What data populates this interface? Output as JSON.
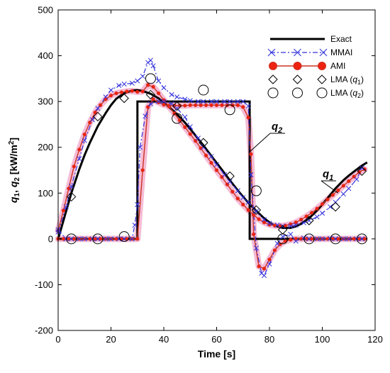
{
  "chart_data": {
    "type": "line",
    "xlabel": "Time [s]",
    "ylabel": "q1, q2 [kW/m2]",
    "xlim": [
      0,
      120
    ],
    "ylim": [
      -200,
      500
    ],
    "xticks": [
      0,
      20,
      40,
      60,
      80,
      100,
      120
    ],
    "yticks": [
      -200,
      -100,
      0,
      100,
      200,
      300,
      400,
      500
    ],
    "grid": false,
    "legend": "top-right",
    "colors": {
      "exact": "#000000",
      "mmai": "#3333dd",
      "ami": "#cc3322",
      "ami_fill": "#ee2211",
      "band": "#f2a6c8"
    },
    "series": [
      {
        "name": "Exact",
        "style": "solid-black",
        "groups": [
          {
            "x": [
              0,
              2,
              5,
              8,
              10,
              12,
              15,
              18,
              20,
              22,
              25,
              28,
              30,
              32,
              35,
              38,
              40,
              42,
              45,
              48,
              50,
              52,
              55,
              58,
              60,
              62,
              65,
              68,
              70,
              72,
              75,
              78,
              80,
              82,
              85,
              88,
              90,
              92,
              95,
              98,
              100,
              102,
              105,
              108,
              110,
              112,
              115,
              117
            ],
            "y": [
              0,
              40,
              100,
              152,
              183,
              210,
              246,
              275,
              292,
              306,
              318,
              324,
              325,
              323,
              317,
              307,
              298,
              288,
              272,
              254,
              240,
              226,
              204,
              181,
              166,
              151,
              128,
              106,
              92,
              79,
              61,
              45,
              36,
              29,
              24,
              24,
              27,
              33,
              45,
              62,
              75,
              89,
              110,
              128,
              138,
              147,
              160,
              167
            ]
          },
          {
            "x": [
              0,
              30,
              30,
              72.5,
              72.5,
              117
            ],
            "y": [
              0,
              0,
              300,
              300,
              0,
              0
            ]
          }
        ]
      },
      {
        "name": "MMAI",
        "style": "dashdot-blue-x",
        "groups": [
          {
            "x": [
              0,
              3,
              5,
              8,
              10,
              13,
              15,
              18,
              20,
              23,
              25,
              28,
              30,
              32,
              34,
              35,
              36,
              38,
              40,
              43,
              45,
              48,
              50,
              53,
              55,
              58,
              60,
              63,
              65,
              68,
              70,
              72,
              73,
              75,
              77,
              78,
              80,
              83,
              85,
              88,
              90,
              93,
              95,
              98,
              100,
              103,
              105,
              108,
              110,
              113,
              115
            ],
            "y": [
              15,
              70,
              115,
              175,
              215,
              260,
              285,
              310,
              325,
              335,
              338,
              340,
              345,
              355,
              385,
              390,
              378,
              345,
              330,
              315,
              310,
              305,
              302,
              300,
              300,
              300,
              300,
              300,
              300,
              300,
              300,
              290,
              140,
              -20,
              -75,
              -80,
              -55,
              -10,
              5,
              10,
              -5,
              2,
              0,
              0,
              0,
              1,
              0,
              0,
              0,
              0,
              0
            ]
          },
          {
            "x": [
              0,
              3,
              5,
              8,
              10,
              13,
              15,
              18,
              20,
              23,
              25,
              28,
              29,
              30,
              31,
              33,
              35,
              38,
              40,
              43,
              45,
              48,
              50,
              53,
              55,
              58,
              60,
              63,
              65,
              68,
              70,
              72,
              75,
              78,
              80,
              83,
              85,
              88,
              90,
              93,
              95,
              98,
              100,
              103,
              105,
              108,
              110,
              113,
              115
            ],
            "y": [
              20,
              0,
              0,
              0,
              0,
              0,
              0,
              0,
              0,
              0,
              0,
              0,
              30,
              75,
              200,
              268,
              295,
              300,
              300,
              295,
              285,
              266,
              245,
              220,
              200,
              180,
              162,
              140,
              125,
              105,
              90,
              80,
              60,
              42,
              34,
              30,
              28,
              28,
              30,
              35,
              40,
              48,
              56,
              70,
              80,
              98,
              110,
              130,
              155
            ]
          }
        ]
      },
      {
        "name": "AMI",
        "style": "solid-red-dots",
        "groups": [
          {
            "x": [
              0,
              2,
              4,
              6,
              8,
              10,
              12,
              14,
              16,
              18,
              20,
              22,
              24,
              26,
              28,
              30,
              32,
              34,
              36,
              38,
              40,
              42,
              44,
              46,
              48,
              50,
              52,
              54,
              56,
              58,
              60,
              62,
              64,
              66,
              68,
              70,
              72,
              73,
              74,
              76,
              78,
              80,
              82,
              84,
              86,
              88,
              90,
              92,
              94,
              96,
              98,
              100,
              102,
              104,
              106,
              108,
              110,
              112,
              114,
              116
            ],
            "y": [
              0,
              0,
              0,
              0,
              0,
              0,
              0,
              0,
              0,
              0,
              0,
              0,
              0,
              0,
              0,
              0,
              150,
              288,
              305,
              298,
              293,
              291,
              291,
              291,
              291,
              292,
              292,
              292,
              292,
              292,
              292,
              292,
              292,
              292,
              292,
              288,
              265,
              185,
              10,
              -60,
              -65,
              -45,
              -25,
              -12,
              -5,
              -2,
              0,
              0,
              0,
              0,
              0,
              0,
              0,
              0,
              0,
              0,
              0,
              0,
              0,
              0
            ]
          },
          {
            "x": [
              0,
              2,
              4,
              6,
              8,
              10,
              12,
              14,
              16,
              18,
              20,
              22,
              24,
              26,
              28,
              30,
              32,
              34,
              36,
              38,
              40,
              42,
              44,
              46,
              48,
              50,
              52,
              54,
              56,
              58,
              60,
              62,
              64,
              66,
              68,
              70,
              72,
              74,
              76,
              78,
              80,
              82,
              84,
              86,
              88,
              90,
              92,
              94,
              96,
              98,
              100,
              102,
              104,
              106,
              108,
              110,
              112,
              114,
              116
            ],
            "y": [
              18,
              62,
              110,
              158,
              195,
              228,
              254,
              276,
              292,
              305,
              313,
              318,
              320,
              322,
              323,
              321,
              322,
              336,
              332,
              318,
              303,
              289,
              274,
              259,
              244,
              229,
              214,
              198,
              182,
              166,
              150,
              135,
              119,
              103,
              88,
              75,
              63,
              52,
              43,
              36,
              31,
              29,
              28,
              29,
              32,
              36,
              42,
              49,
              57,
              66,
              76,
              86,
              96,
              106,
              116,
              126,
              136,
              146,
              152
            ]
          }
        ]
      },
      {
        "name": "LMA (q1)",
        "style": "open-diamond",
        "x": [
          5,
          15,
          25,
          35,
          45,
          55,
          65,
          75,
          85,
          95,
          105,
          115
        ],
        "y": [
          92,
          267,
          307,
          315,
          290,
          210,
          137,
          63,
          20,
          40,
          70,
          148
        ]
      },
      {
        "name": "LMA (q2)",
        "style": "open-circle",
        "x": [
          5,
          15,
          25,
          35,
          45,
          55,
          65,
          75,
          85,
          95,
          105,
          115
        ],
        "y": [
          0,
          0,
          5,
          350,
          263,
          325,
          282,
          105,
          0,
          0,
          0,
          0
        ]
      }
    ]
  },
  "annotations": [
    {
      "label": "q",
      "sub": "2",
      "points_to": [
        72.5,
        190
      ]
    },
    {
      "label": "q",
      "sub": "1",
      "points_to": [
        106,
        100
      ]
    }
  ],
  "axis_text": {
    "ylabel_q1": "q",
    "ylabel_sub1": "1",
    "ylabel_comma": ", ",
    "ylabel_q2": "q",
    "ylabel_sub2": "2",
    "ylabel_units": " [kW/m",
    "ylabel_sup": "2",
    "ylabel_close": "]"
  }
}
